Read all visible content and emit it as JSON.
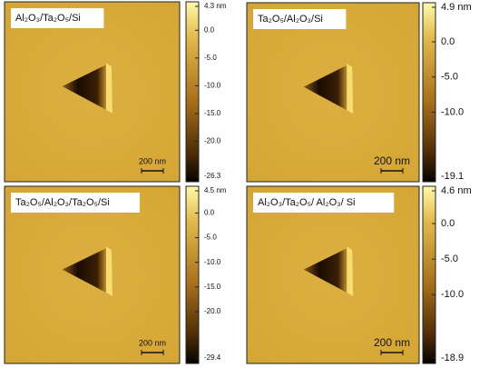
{
  "panels": [
    {
      "label": "Al₂O₃/Ta₂O₅/Si",
      "scale_bar": "200 nm",
      "colorbar": {
        "ticks": [
          {
            "value": 4.3,
            "label": "4.3 nm"
          },
          {
            "value": 0,
            "label": "0.0"
          },
          {
            "value": -5,
            "label": "-5.0"
          },
          {
            "value": -10,
            "label": "-10.0"
          },
          {
            "value": -15,
            "label": "-15.0"
          },
          {
            "value": -20,
            "label": "-20.0"
          },
          {
            "value": -26.3,
            "label": "-26.3"
          }
        ]
      }
    },
    {
      "label": "Ta₂O₅/Al₂O₃/Si",
      "scale_bar": "200 nm",
      "colorbar": {
        "ticks": [
          {
            "value": 4.9,
            "label": "4.9 nm"
          },
          {
            "value": 0,
            "label": "0.0"
          },
          {
            "value": -5,
            "label": "-5.0"
          },
          {
            "value": -10,
            "label": "-10.0"
          },
          {
            "value": -19.1,
            "label": "-19.1"
          }
        ]
      }
    },
    {
      "label": "Ta₂O₅/Al₂O₃/Ta₂O₅/Si",
      "scale_bar": "200 nm",
      "colorbar": {
        "ticks": [
          {
            "value": 4.5,
            "label": "4.5 nm"
          },
          {
            "value": 0,
            "label": "0.0"
          },
          {
            "value": -5,
            "label": "-5.0"
          },
          {
            "value": -10,
            "label": "-10.0"
          },
          {
            "value": -15,
            "label": "-15.0"
          },
          {
            "value": -20,
            "label": "-20.0"
          },
          {
            "value": -29.4,
            "label": "-29.4"
          }
        ]
      }
    },
    {
      "label": "Al₂O₃/Ta₂O₅/ Al₂O₃/ Si",
      "scale_bar": "200 nm",
      "colorbar": {
        "ticks": [
          {
            "value": 4.6,
            "label": "4.6 nm"
          },
          {
            "value": 0,
            "label": "0.0"
          },
          {
            "value": -5,
            "label": "-5.0"
          },
          {
            "value": -10,
            "label": "-10.0"
          },
          {
            "value": -18.9,
            "label": "-18.9"
          }
        ]
      }
    }
  ]
}
